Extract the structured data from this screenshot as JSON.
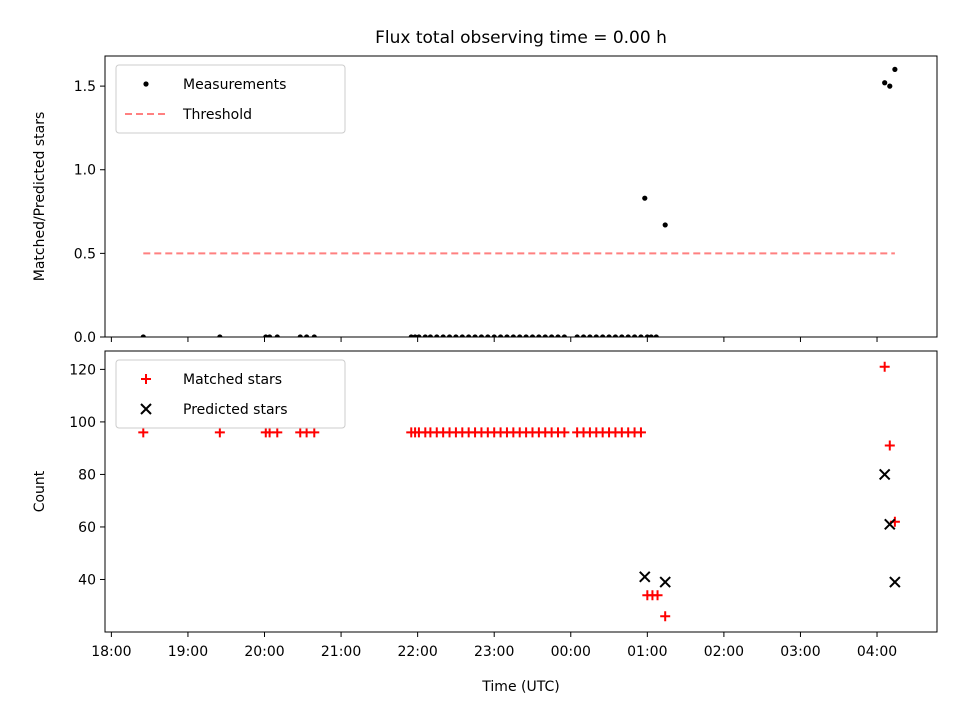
{
  "chart_data": [
    {
      "type": "scatter",
      "title": "Flux total observing time = 0.00 h",
      "xlabel": "",
      "ylabel": "Matched/Predicted stars",
      "xlim": [
        "17:55",
        "04:47"
      ],
      "ylim": [
        0,
        1.68
      ],
      "yticks": [
        "0.0",
        "0.5",
        "1.0",
        "1.5"
      ],
      "grid": false,
      "legend_position": "top-left",
      "series": [
        {
          "name": "Measurements",
          "marker": "dot",
          "color": "#000000",
          "x": [
            "18:25",
            "19:25",
            "20:01",
            "20:04",
            "20:10",
            "20:28",
            "20:33",
            "20:39",
            "21:55",
            "21:58",
            "22:01",
            "22:06",
            "22:10",
            "22:15",
            "22:20",
            "22:25",
            "22:30",
            "22:35",
            "22:40",
            "22:45",
            "22:50",
            "22:55",
            "23:00",
            "23:05",
            "23:10",
            "23:15",
            "23:20",
            "23:25",
            "23:30",
            "23:35",
            "23:40",
            "23:45",
            "23:50",
            "23:55",
            "00:05",
            "00:10",
            "00:15",
            "00:20",
            "00:25",
            "00:30",
            "00:35",
            "00:40",
            "00:45",
            "00:50",
            "00:55",
            "01:00",
            "01:03",
            "01:07",
            "00:58",
            "01:14",
            "04:06",
            "04:10",
            "04:14"
          ],
          "y": [
            0,
            0,
            0,
            0,
            0,
            0,
            0,
            0,
            0,
            0,
            0,
            0,
            0,
            0,
            0,
            0,
            0,
            0,
            0,
            0,
            0,
            0,
            0,
            0,
            0,
            0,
            0,
            0,
            0,
            0,
            0,
            0,
            0,
            0,
            0,
            0,
            0,
            0,
            0,
            0,
            0,
            0,
            0,
            0,
            0,
            0,
            0,
            0,
            0.83,
            0.67,
            1.52,
            1.5,
            1.6
          ]
        },
        {
          "name": "Threshold",
          "style": "dashed",
          "color": "#ff8080",
          "x": [
            "18:25",
            "04:14"
          ],
          "y": [
            0.5,
            0.5
          ]
        }
      ]
    },
    {
      "type": "scatter",
      "title": "",
      "xlabel": "Time (UTC)",
      "ylabel": "Count",
      "xlim": [
        "17:55",
        "04:47"
      ],
      "ylim": [
        20,
        127
      ],
      "yticks": [
        "40",
        "60",
        "80",
        "100",
        "120"
      ],
      "xticks": [
        "18:00",
        "19:00",
        "20:00",
        "21:00",
        "22:00",
        "23:00",
        "00:00",
        "01:00",
        "02:00",
        "03:00",
        "04:00"
      ],
      "grid": false,
      "legend_position": "top-left",
      "series": [
        {
          "name": "Matched stars",
          "marker": "plus",
          "color": "#ff0000",
          "x": [
            "18:25",
            "19:25",
            "20:01",
            "20:04",
            "20:10",
            "20:28",
            "20:33",
            "20:39",
            "21:55",
            "21:58",
            "22:01",
            "22:06",
            "22:10",
            "22:15",
            "22:20",
            "22:25",
            "22:30",
            "22:35",
            "22:40",
            "22:45",
            "22:50",
            "22:55",
            "23:00",
            "23:05",
            "23:10",
            "23:15",
            "23:20",
            "23:25",
            "23:30",
            "23:35",
            "23:40",
            "23:45",
            "23:50",
            "23:55",
            "00:05",
            "00:10",
            "00:15",
            "00:20",
            "00:25",
            "00:30",
            "00:35",
            "00:40",
            "00:45",
            "00:50",
            "00:55",
            "01:00",
            "01:04",
            "01:08",
            "01:14",
            "04:06",
            "04:10",
            "04:14"
          ],
          "y": [
            96,
            96,
            96,
            96,
            96,
            96,
            96,
            96,
            96,
            96,
            96,
            96,
            96,
            96,
            96,
            96,
            96,
            96,
            96,
            96,
            96,
            96,
            96,
            96,
            96,
            96,
            96,
            96,
            96,
            96,
            96,
            96,
            96,
            96,
            96,
            96,
            96,
            96,
            96,
            96,
            96,
            96,
            96,
            96,
            96,
            34,
            34,
            34,
            26,
            121,
            91,
            62
          ]
        },
        {
          "name": "Predicted stars",
          "marker": "x",
          "color": "#000000",
          "x": [
            "00:58",
            "01:14",
            "04:06",
            "04:10",
            "04:14"
          ],
          "y": [
            41,
            39,
            80,
            61,
            39
          ]
        }
      ]
    }
  ]
}
